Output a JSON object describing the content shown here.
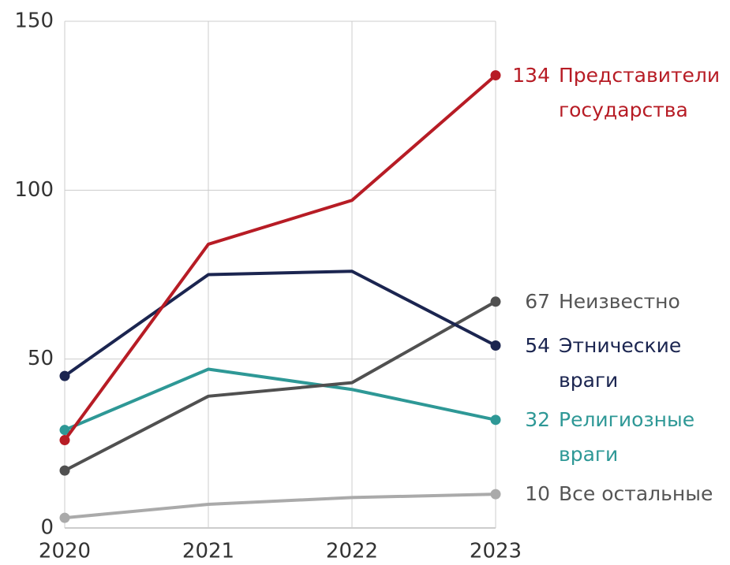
{
  "chart_data": {
    "type": "line",
    "x": [
      2020,
      2021,
      2022,
      2023
    ],
    "xlim": [
      2020,
      2023
    ],
    "xticks": [
      2020,
      2021,
      2022,
      2023
    ],
    "ylim": [
      0,
      150
    ],
    "yticks": [
      0,
      50,
      100,
      150
    ],
    "grid": true,
    "series": [
      {
        "name": "Все остальные",
        "color": "#aaaaaa",
        "values": [
          3,
          7,
          9,
          10
        ]
      },
      {
        "name": "Религиозные враги",
        "color": "#2e9896",
        "values": [
          29,
          47,
          41,
          32
        ]
      },
      {
        "name": "Неизвестно",
        "color": "#505050",
        "values": [
          17,
          39,
          43,
          67
        ]
      },
      {
        "name": "Этнические враги",
        "color": "#1b2550",
        "values": [
          45,
          75,
          76,
          54
        ]
      },
      {
        "name": "Представители государства",
        "color": "#b71c25",
        "values": [
          26,
          84,
          97,
          134
        ]
      }
    ]
  }
}
